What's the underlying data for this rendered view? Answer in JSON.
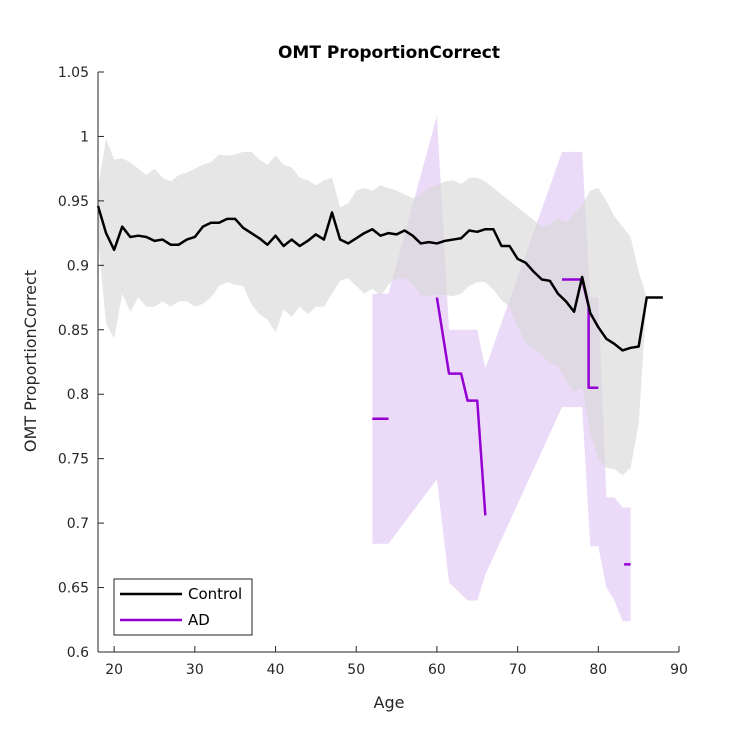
{
  "chart_data": {
    "type": "line",
    "title": "OMT ProportionCorrect",
    "xlabel": "Age",
    "ylabel": "OMT ProportionCorrect",
    "xlim": [
      18,
      90
    ],
    "ylim": [
      0.6,
      1.05
    ],
    "xticks": [
      20,
      30,
      40,
      50,
      60,
      70,
      80,
      90
    ],
    "yticks": [
      0.6,
      0.65,
      0.7,
      0.75,
      0.8,
      0.85,
      0.9,
      0.95,
      1,
      1.05
    ],
    "ytick_labels": [
      "0.6",
      "0.65",
      "0.7",
      "0.75",
      "0.8",
      "0.85",
      "0.9",
      "0.95",
      "1",
      "1.05"
    ],
    "grid": false,
    "legend_position": "bottom-left",
    "colors": {
      "control": "#000000",
      "control_band": "#d9d9d9",
      "ad": "#9400d3",
      "ad_band": "#e4ccf5"
    },
    "series": [
      {
        "name": "Control",
        "x": [
          18,
          19,
          20,
          21,
          22,
          23,
          24,
          25,
          26,
          27,
          28,
          29,
          30,
          31,
          32,
          33,
          34,
          35,
          36,
          37,
          38,
          39,
          40,
          41,
          42,
          43,
          44,
          45,
          46,
          47,
          48,
          49,
          50,
          51,
          52,
          53,
          54,
          55,
          56,
          57,
          58,
          59,
          60,
          61,
          62,
          63,
          64,
          65,
          66,
          67,
          68,
          69,
          70,
          71,
          72,
          73,
          74,
          75,
          76,
          77,
          78,
          79,
          80,
          81,
          82,
          83,
          84,
          85,
          86,
          87,
          88
        ],
        "y": [
          0.946,
          0.925,
          0.912,
          0.93,
          0.922,
          0.923,
          0.922,
          0.919,
          0.92,
          0.916,
          0.916,
          0.92,
          0.922,
          0.93,
          0.933,
          0.933,
          0.936,
          0.936,
          0.929,
          0.925,
          0.921,
          0.916,
          0.923,
          0.915,
          0.92,
          0.915,
          0.919,
          0.924,
          0.92,
          0.941,
          0.92,
          0.917,
          0.921,
          0.925,
          0.928,
          0.923,
          0.925,
          0.924,
          0.927,
          0.923,
          0.917,
          0.918,
          0.917,
          0.919,
          0.92,
          0.921,
          0.927,
          0.926,
          0.928,
          0.928,
          0.915,
          0.915,
          0.905,
          0.902,
          0.895,
          0.889,
          0.888,
          0.878,
          0.872,
          0.864,
          0.891,
          0.863,
          0.852,
          0.843,
          0.839,
          0.834,
          0.836,
          0.837,
          0.875,
          0.875,
          0.875
        ],
        "band_upper": [
          0.96,
          0.998,
          0.982,
          0.983,
          0.98,
          0.975,
          0.97,
          0.975,
          0.968,
          0.965,
          0.97,
          0.972,
          0.975,
          0.978,
          0.98,
          0.986,
          0.985,
          0.986,
          0.988,
          0.988,
          0.982,
          0.978,
          0.985,
          0.978,
          0.976,
          0.968,
          0.966,
          0.962,
          0.966,
          0.968,
          0.945,
          0.948,
          0.958,
          0.96,
          0.958,
          0.962,
          0.96,
          0.958,
          0.955,
          0.952,
          0.955,
          0.96,
          0.962,
          0.965,
          0.966,
          0.963,
          0.968,
          0.968,
          0.965,
          0.96,
          0.955,
          0.95,
          0.945,
          0.94,
          0.935,
          0.93,
          0.932,
          0.937,
          0.933,
          0.94,
          0.947,
          0.958,
          0.96,
          0.95,
          0.938,
          0.93,
          0.922,
          0.895,
          0.875,
          0.875,
          0.875
        ],
        "band_lower": [
          0.92,
          0.855,
          0.843,
          0.878,
          0.864,
          0.875,
          0.868,
          0.868,
          0.872,
          0.868,
          0.872,
          0.872,
          0.868,
          0.87,
          0.875,
          0.884,
          0.887,
          0.885,
          0.884,
          0.87,
          0.862,
          0.858,
          0.848,
          0.866,
          0.86,
          0.868,
          0.862,
          0.868,
          0.868,
          0.878,
          0.888,
          0.89,
          0.884,
          0.878,
          0.882,
          0.876,
          0.885,
          0.89,
          0.89,
          0.885,
          0.877,
          0.876,
          0.877,
          0.877,
          0.876,
          0.878,
          0.884,
          0.887,
          0.887,
          0.881,
          0.873,
          0.868,
          0.852,
          0.84,
          0.835,
          0.83,
          0.824,
          0.822,
          0.81,
          0.802,
          0.805,
          0.77,
          0.75,
          0.743,
          0.742,
          0.737,
          0.743,
          0.777,
          0.875,
          0.875,
          0.875
        ]
      },
      {
        "name": "AD",
        "segments": [
          {
            "x": [
              52,
              54
            ],
            "y": [
              0.781,
              0.781
            ]
          },
          {
            "x": [
              60,
              61.5,
              61.5,
              63,
              63.8,
              63.8,
              65,
              66
            ],
            "y": [
              0.875,
              0.816,
              0.816,
              0.816,
              0.795,
              0.795,
              0.795,
              0.706
            ]
          },
          {
            "x": [
              75.5,
              77.8,
              78,
              78.8,
              78.8,
              80
            ],
            "y": [
              0.889,
              0.889,
              0.889,
              0.868,
              0.805,
              0.805
            ]
          },
          {
            "x": [
              83.2,
              84
            ],
            "y": [
              0.668,
              0.668
            ]
          }
        ],
        "band_upper": {
          "x": [
            52,
            54,
            60,
            61.5,
            63.8,
            65,
            66,
            75.5,
            78,
            79,
            80,
            81,
            82,
            83,
            84
          ],
          "y": [
            0.878,
            0.878,
            1.016,
            0.85,
            0.85,
            0.85,
            0.82,
            0.988,
            0.988,
            0.875,
            0.875,
            0.72,
            0.72,
            0.712,
            0.712
          ]
        },
        "band_lower": {
          "x": [
            52,
            54,
            60,
            61.5,
            63.8,
            65,
            66,
            75.5,
            78,
            79,
            80,
            81,
            82,
            83,
            84
          ],
          "y": [
            0.684,
            0.684,
            0.734,
            0.654,
            0.64,
            0.64,
            0.66,
            0.79,
            0.79,
            0.682,
            0.682,
            0.65,
            0.64,
            0.624,
            0.624
          ]
        }
      }
    ]
  }
}
